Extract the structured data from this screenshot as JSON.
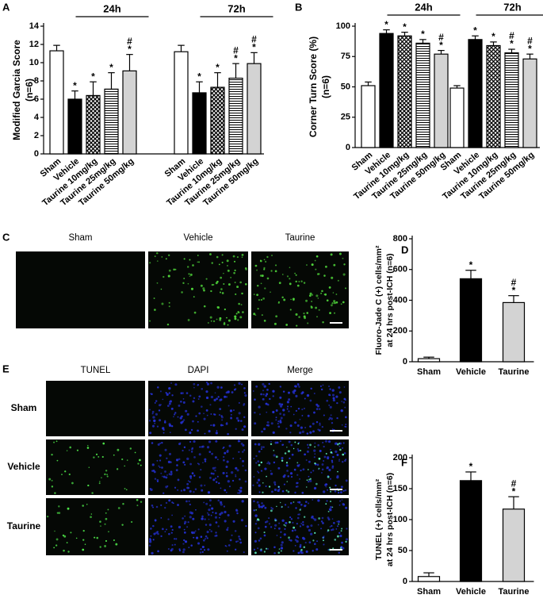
{
  "chart_data": [
    {
      "panel": "A",
      "type": "bar",
      "ylabel": [
        "Modified Garcia Score",
        "(n=6)"
      ],
      "categories": [
        "Sham",
        "Vehicle",
        "Taurine 10mg/kg",
        "Taurine 25mg/kg",
        "Taurine 50mg/kg"
      ],
      "fills": [
        "#ffffff",
        "#000000",
        "crosshatch",
        "hlines",
        "#d3d3d3"
      ],
      "ylim": [
        0,
        14
      ],
      "yticks": [
        0,
        2,
        4,
        6,
        8,
        10,
        12,
        14
      ],
      "groups": [
        {
          "name": "24h",
          "values": [
            11.3,
            6.0,
            6.4,
            7.1,
            9.1
          ],
          "errors": [
            0.6,
            0.9,
            1.5,
            1.8,
            1.8
          ],
          "significance": [
            null,
            "*",
            "*",
            "*",
            [
              "#",
              "*"
            ]
          ]
        },
        {
          "name": "72h",
          "values": [
            11.2,
            6.7,
            7.3,
            8.3,
            9.9
          ],
          "errors": [
            0.7,
            1.2,
            1.6,
            1.6,
            1.2
          ],
          "significance": [
            null,
            "*",
            "*",
            [
              "#",
              "*"
            ],
            [
              "#",
              "*"
            ]
          ]
        }
      ]
    },
    {
      "panel": "B",
      "type": "bar",
      "ylabel": [
        "Corner Turn Score (%)",
        "(n=6)"
      ],
      "categories": [
        "Sham",
        "Vehicle",
        "Taurine 10mg/kg",
        "Taurine 25mg/kg",
        "Taurine 50mg/kg"
      ],
      "fills": [
        "#ffffff",
        "#000000",
        "crosshatch",
        "hlines",
        "#d3d3d3"
      ],
      "ylim": [
        0,
        100
      ],
      "yticks": [
        0,
        25,
        50,
        75,
        100
      ],
      "groups": [
        {
          "name": "24h",
          "values": [
            51,
            94,
            92,
            86,
            77
          ],
          "errors": [
            3,
            3,
            3,
            3,
            3
          ],
          "significance": [
            null,
            "*",
            "*",
            "*",
            [
              "#",
              "*"
            ]
          ]
        },
        {
          "name": "72h",
          "values": [
            49,
            89,
            84,
            78,
            73
          ],
          "errors": [
            2,
            3,
            3,
            3,
            4
          ],
          "significance": [
            null,
            "*",
            "*",
            [
              "#",
              "*"
            ],
            [
              "#",
              "*"
            ]
          ]
        }
      ]
    },
    {
      "panel": "C",
      "type": "micrograph",
      "columns": [
        "Sham",
        "Vehicle",
        "Taurine"
      ]
    },
    {
      "panel": "D",
      "type": "bar",
      "ylabel": [
        "Fluoro-Jade C (+) cells/mm²",
        "at 24 hrs post-ICH (n=6)"
      ],
      "categories": [
        "Sham",
        "Vehicle",
        "Taurine"
      ],
      "fills": [
        "#ffffff",
        "#000000",
        "#d3d3d3"
      ],
      "ylim": [
        0,
        800
      ],
      "yticks": [
        0,
        200,
        400,
        600,
        800
      ],
      "values": [
        20,
        540,
        385
      ],
      "errors": [
        10,
        55,
        45
      ],
      "significance": [
        null,
        "*",
        [
          "#",
          "*"
        ]
      ]
    },
    {
      "panel": "E",
      "type": "micrograph",
      "columns": [
        "TUNEL",
        "DAPI",
        "Merge"
      ],
      "rows": [
        "Sham",
        "Vehicle",
        "Taurine"
      ]
    },
    {
      "panel": "F",
      "type": "bar",
      "ylabel": [
        "TUNEL (+) cells/mm²",
        "at 24 hrs post-ICH (n=6)"
      ],
      "categories": [
        "Sham",
        "Vehicle",
        "Taurine"
      ],
      "fills": [
        "#ffffff",
        "#000000",
        "#d3d3d3"
      ],
      "ylim": [
        0,
        200
      ],
      "yticks": [
        0,
        50,
        100,
        150,
        200
      ],
      "values": [
        8,
        163,
        117
      ],
      "errors": [
        6,
        14,
        20
      ],
      "significance": [
        null,
        "*",
        [
          "#",
          "*"
        ]
      ]
    }
  ]
}
